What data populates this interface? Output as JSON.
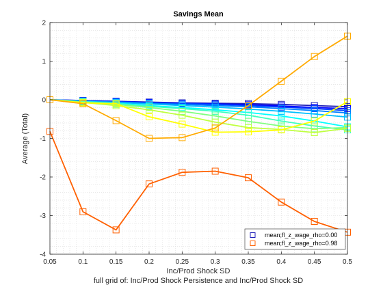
{
  "chart_data": {
    "type": "line",
    "title": "Savings Mean",
    "xlabel": "Inc/Prod Shock SD",
    "ylabel": "Average (Total)",
    "caption": "full grid of: Inc/Prod Shock Persistence and Inc/Prod Shock SD",
    "xlim": [
      0.05,
      0.5
    ],
    "ylim": [
      -4,
      2
    ],
    "xticks": [
      "0.05",
      "0.1",
      "0.15",
      "0.2",
      "0.25",
      "0.3",
      "0.35",
      "0.4",
      "0.45",
      "0.5"
    ],
    "yticks": [
      "2",
      "1",
      "0",
      "-1",
      "-2",
      "-3",
      "-4"
    ],
    "grid": "minor dotted",
    "legend_position": "bottom-right",
    "x": [
      0.05,
      0.1,
      0.15,
      0.2,
      0.25,
      0.3,
      0.35,
      0.4,
      0.45,
      0.5
    ],
    "series": [
      {
        "name": "mean;fl_z_wage_rho=0.00",
        "color": "#1f1fb8",
        "marker": "square",
        "values": [
          0.0,
          -0.02,
          -0.04,
          -0.06,
          -0.08,
          -0.09,
          -0.1,
          -0.12,
          -0.15,
          -0.18
        ]
      },
      {
        "color": "#0000ff",
        "marker": "square",
        "values": [
          0.0,
          -0.02,
          -0.04,
          -0.07,
          -0.09,
          -0.11,
          -0.13,
          -0.16,
          -0.2,
          -0.23
        ]
      },
      {
        "color": "#0040ff",
        "marker": "square",
        "values": [
          0.0,
          -0.03,
          -0.05,
          -0.08,
          -0.1,
          -0.12,
          -0.15,
          -0.19,
          -0.23,
          -0.28
        ]
      },
      {
        "color": "#0080ff",
        "marker": "square",
        "values": [
          0.0,
          -0.03,
          -0.06,
          -0.09,
          -0.12,
          -0.15,
          -0.18,
          -0.23,
          -0.28,
          -0.34
        ]
      },
      {
        "color": "#00bfff",
        "marker": "square",
        "values": [
          0.0,
          -0.04,
          -0.07,
          -0.11,
          -0.15,
          -0.19,
          -0.24,
          -0.3,
          -0.37,
          -0.45
        ]
      },
      {
        "color": "#00ffff",
        "marker": "square",
        "values": [
          0.0,
          -0.05,
          -0.09,
          -0.15,
          -0.2,
          -0.26,
          -0.33,
          -0.42,
          -0.55,
          -0.7
        ]
      },
      {
        "color": "#40ffbf",
        "marker": "square",
        "values": [
          0.0,
          -0.05,
          -0.1,
          -0.17,
          -0.23,
          -0.3,
          -0.4,
          -0.55,
          -0.68,
          -0.78
        ]
      },
      {
        "color": "#80ff80",
        "marker": "square",
        "values": [
          0.0,
          -0.06,
          -0.12,
          -0.2,
          -0.3,
          -0.42,
          -0.56,
          -0.68,
          -0.75,
          -0.72
        ]
      },
      {
        "color": "#bfff40",
        "marker": "square",
        "values": [
          0.0,
          -0.07,
          -0.15,
          -0.26,
          -0.4,
          -0.58,
          -0.72,
          -0.77,
          -0.85,
          -0.74
        ]
      },
      {
        "color": "#ffff00",
        "marker": "square",
        "values": [
          0.0,
          -0.08,
          -0.1,
          -0.44,
          -0.63,
          -0.84,
          -0.83,
          -0.78,
          -0.55,
          -0.05
        ]
      },
      {
        "color": "#ffaa00",
        "marker": "square",
        "values": [
          0.0,
          -0.1,
          -0.54,
          -1.0,
          -0.98,
          -0.73,
          -0.15,
          0.48,
          1.12,
          1.65
        ]
      },
      {
        "name": "mean;fl_z_wage_rho=0.98",
        "color": "#ff6000",
        "marker": "square",
        "values": [
          -0.82,
          -2.9,
          -3.37,
          -2.18,
          -1.88,
          -1.85,
          -2.02,
          -2.65,
          -3.15,
          -3.43
        ]
      }
    ],
    "legend": [
      {
        "label": "mean;fl_z_wage_rho=0.00",
        "color": "#1f1fb8"
      },
      {
        "label": "mean;fl_z_wage_rho=0.98",
        "color": "#ff6000"
      }
    ]
  }
}
